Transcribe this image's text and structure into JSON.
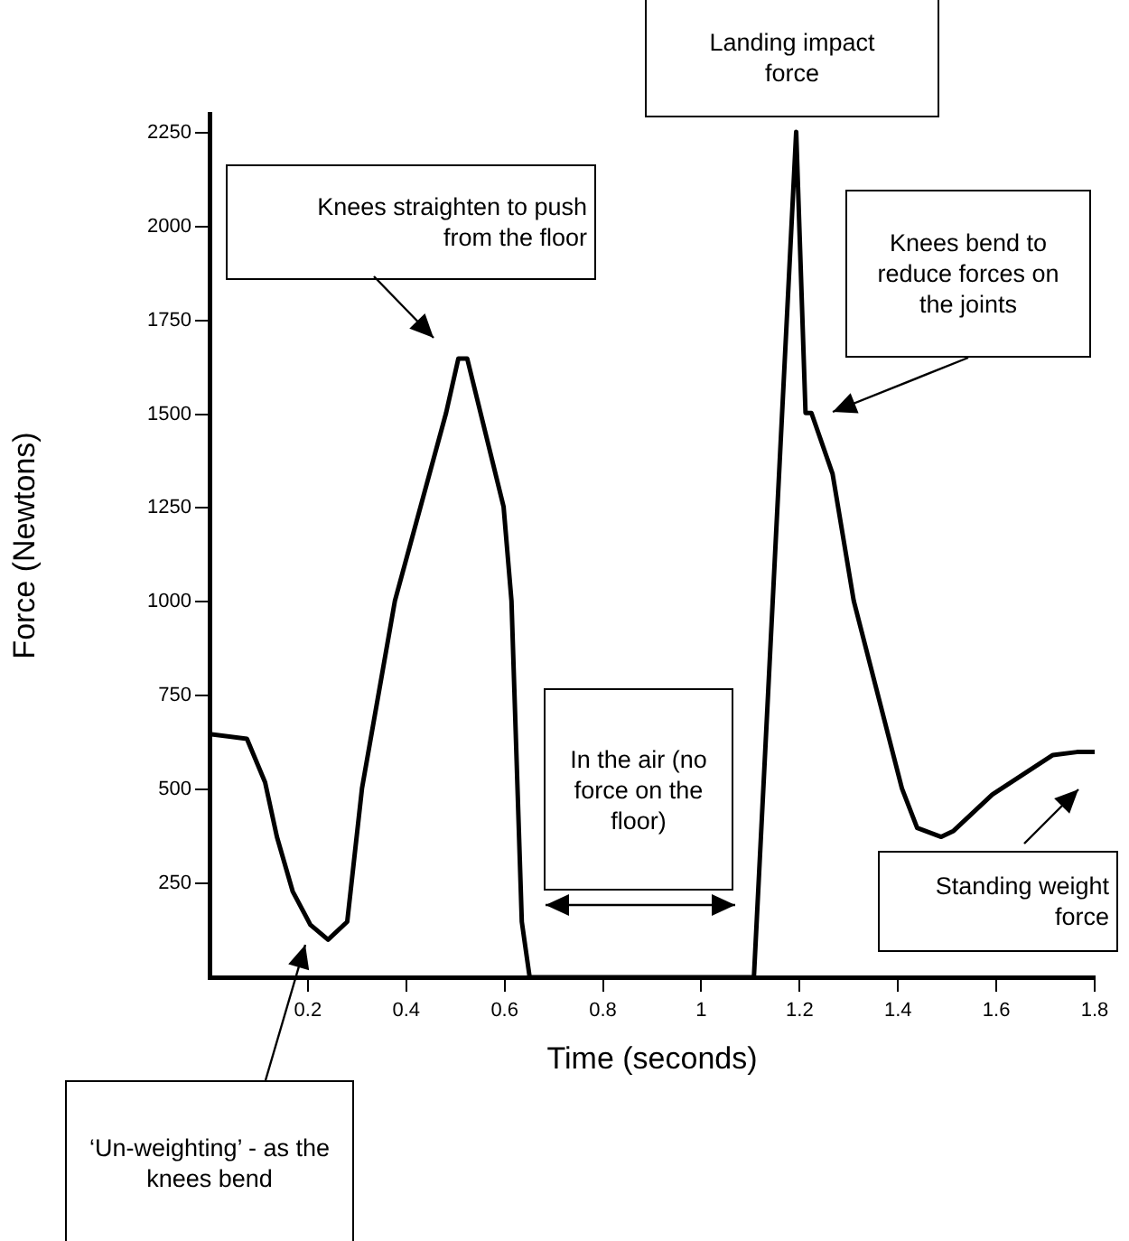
{
  "chart_data": {
    "type": "line",
    "xlabel": "Time (seconds)",
    "ylabel": "Force (Newtons)",
    "x": [
      0,
      0.076,
      0.113,
      0.137,
      0.169,
      0.205,
      0.241,
      0.28,
      0.31,
      0.377,
      0.481,
      0.506,
      0.524,
      0.598,
      0.614,
      0.635,
      0.651,
      1.107,
      1.193,
      1.212,
      1.224,
      1.267,
      1.31,
      1.408,
      1.439,
      1.488,
      1.513,
      1.592,
      1.715,
      1.764,
      1.8
    ],
    "series": [
      {
        "color": "#000000",
        "values": [
          648,
          635,
          519,
          374,
          229,
          140,
          100,
          148,
          503,
          1003,
          1503,
          1648,
          1648,
          1253,
          1003,
          148,
          0,
          0,
          2252,
          1503,
          1503,
          1341,
          1003,
          503,
          398,
          374,
          390,
          487,
          592,
          600,
          600
        ]
      }
    ],
    "xlim": [
      0,
      1.8
    ],
    "xticks": [
      0.2,
      0.4,
      0.6,
      0.8,
      1.0,
      1.2,
      1.4,
      1.6,
      1.8
    ],
    "ylim": [
      0,
      2300
    ],
    "yticks": [
      250,
      500,
      750,
      1000,
      1250,
      1500,
      1750,
      2000,
      2250
    ],
    "grid": false,
    "legend": false,
    "marker": "none",
    "line_style": "solid",
    "annotations": [
      "Knees straighten to push from the floor",
      "Landing impact force",
      "Knees bend to reduce forces on the joints",
      "In the air (no force on the floor)",
      "Standing weight force",
      "‘Un-weighting’ - as the knees bend"
    ]
  }
}
